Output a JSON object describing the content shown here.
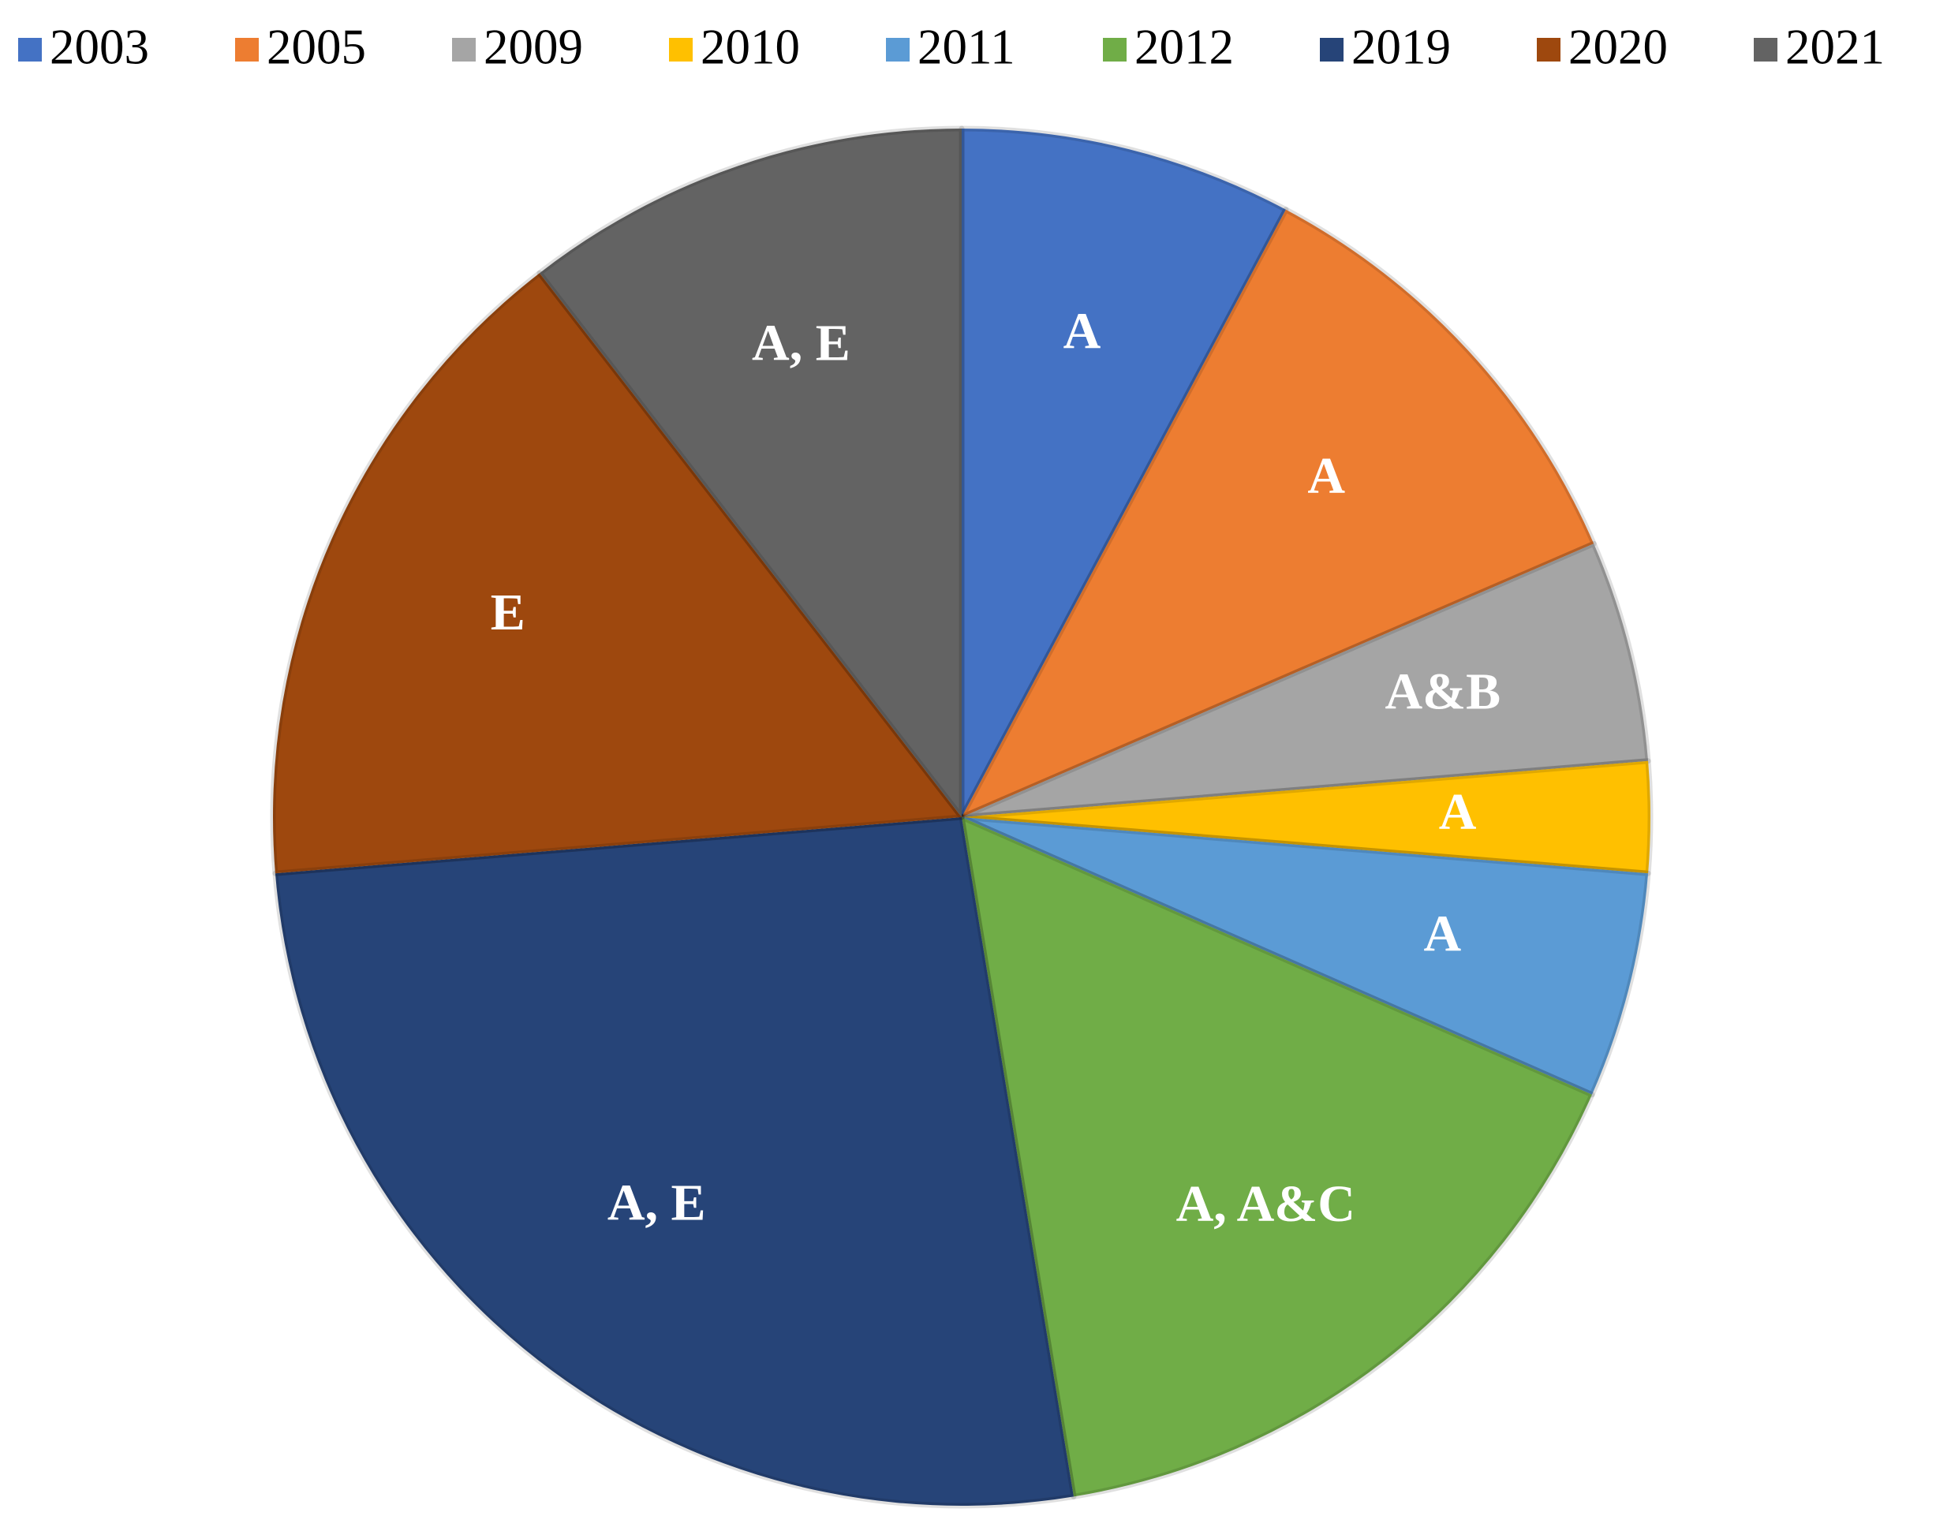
{
  "chart_data": {
    "type": "pie",
    "categories": [
      "2003",
      "2005",
      "2009",
      "2010",
      "2011",
      "2012",
      "2019",
      "2020",
      "2021"
    ],
    "values": [
      7.8,
      10.7,
      5.2,
      2.6,
      5.3,
      15.8,
      26.3,
      15.8,
      10.5
    ],
    "labels": [
      "A",
      "A",
      "A&B",
      "A",
      "A",
      "A, A&C",
      "A, E",
      "E",
      "A, E"
    ],
    "colors": [
      "#4472c4",
      "#ed7d31",
      "#a5a5a5",
      "#ffc000",
      "#5b9bd5",
      "#70ad47",
      "#264478",
      "#9e480e",
      "#636363"
    ],
    "legend": "top"
  }
}
